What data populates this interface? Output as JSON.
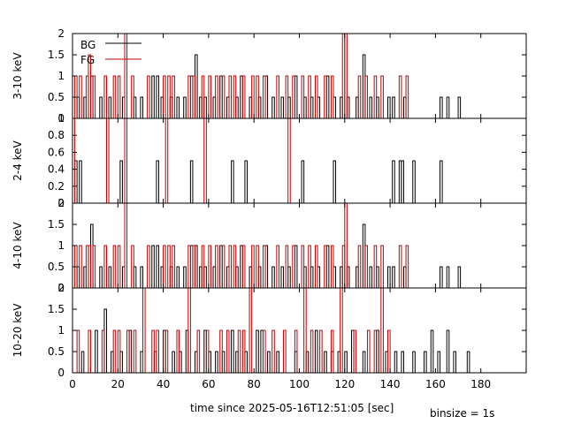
{
  "chart_data": {
    "type": "line",
    "step": true,
    "xlabel": "time since 2025-05-16T12:51:05 [sec]",
    "annotation": "binsize = 1s",
    "xlim": [
      0,
      200
    ],
    "xticks": [
      "0",
      "20",
      "40",
      "60",
      "80",
      "100",
      "120",
      "140",
      "160",
      "180"
    ],
    "legend": {
      "placement": "top-left",
      "entries": [
        "BG",
        "FG"
      ]
    },
    "colors": {
      "BG": "#000000",
      "FG": "#c00000"
    },
    "panels": [
      {
        "ylabel": "3-10 keV",
        "ylim": [
          0,
          2
        ],
        "yticks": [
          "0",
          "0.5",
          "1",
          "1.5",
          "2"
        ],
        "series": [
          {
            "name": "BG",
            "x": [
              2,
              5,
              8,
              12,
              16,
              22,
              27,
              30,
              35,
              37,
              39,
              43,
              46,
              49,
              52,
              54,
              56,
              58,
              62,
              65,
              68,
              72,
              74,
              78,
              82,
              85,
              88,
              92,
              95,
              98,
              102,
              105,
              108,
              112,
              115,
              118,
              121,
              125,
              128,
              131,
              134,
              139,
              141,
              146,
              162,
              165,
              170
            ],
            "y": [
              0.5,
              0.5,
              1,
              0.5,
              0.5,
              0.5,
              0.5,
              0.5,
              1,
              1,
              0.5,
              0.5,
              0.5,
              0.5,
              1,
              1.5,
              0.5,
              0.5,
              0.5,
              1,
              0.5,
              0.5,
              1,
              0.5,
              0.5,
              1,
              0.5,
              0.5,
              0.5,
              1,
              0.5,
              0.5,
              0.5,
              1,
              0.5,
              0.5,
              0.5,
              0.5,
              1.5,
              0.5,
              0.5,
              0.5,
              0.5,
              0.5,
              0.5,
              0.5,
              0.5
            ]
          },
          {
            "name": "FG",
            "x": [
              1,
              3,
              6,
              7,
              9,
              14,
              18,
              20,
              23,
              26,
              33,
              40,
              42,
              44,
              51,
              53,
              57,
              60,
              63,
              66,
              69,
              71,
              75,
              79,
              81,
              84,
              90,
              94,
              97,
              101,
              104,
              107,
              111,
              114,
              119,
              120,
              126,
              129,
              133,
              136,
              144,
              147
            ],
            "y": [
              1,
              1,
              1,
              1.5,
              1,
              1,
              1,
              1,
              2,
              1,
              1,
              1,
              1,
              1,
              1,
              1,
              1,
              1,
              1,
              1,
              1,
              1,
              1,
              1,
              1,
              1,
              1,
              1,
              1,
              1,
              1,
              1,
              1,
              1,
              2,
              2,
              1,
              1,
              1,
              1,
              1,
              1
            ]
          }
        ]
      },
      {
        "ylabel": "2-4 keV",
        "ylim": [
          0,
          1
        ],
        "yticks": [
          "0",
          "0.2",
          "0.4",
          "0.6",
          "0.8",
          "1"
        ],
        "series": [
          {
            "name": "BG",
            "x": [
              1,
              3,
              21,
              37,
              52,
              70,
              76,
              101,
              115,
              141,
              144,
              145,
              150,
              162
            ],
            "y": [
              0.5,
              0.5,
              0.5,
              0.5,
              0.5,
              0.5,
              0.5,
              0.5,
              0.5,
              0.5,
              0.5,
              0.5,
              0.5,
              0.5
            ]
          },
          {
            "name": "FG",
            "x": [
              0,
              15,
              23,
              41,
              58,
              95
            ],
            "y": [
              1,
              1,
              1,
              1,
              1,
              1
            ]
          }
        ]
      },
      {
        "ylabel": "4-10 keV",
        "ylim": [
          0,
          2
        ],
        "yticks": [
          "0",
          "0.5",
          "1",
          "1.5",
          "2"
        ],
        "series": [
          {
            "name": "BG",
            "x": [
              2,
              5,
              8,
              12,
              16,
              22,
              27,
              30,
              35,
              37,
              39,
              43,
              46,
              49,
              52,
              54,
              56,
              58,
              62,
              65,
              68,
              72,
              74,
              78,
              82,
              85,
              88,
              92,
              95,
              98,
              102,
              105,
              108,
              112,
              115,
              118,
              121,
              125,
              128,
              131,
              134,
              139,
              141,
              146,
              162,
              165,
              170
            ],
            "y": [
              0.5,
              0.5,
              1.5,
              0.5,
              0.5,
              0.5,
              0.5,
              0.5,
              1,
              1,
              0.5,
              0.5,
              0.5,
              0.5,
              1,
              1,
              0.5,
              0.5,
              0.5,
              1,
              0.5,
              0.5,
              1,
              0.5,
              0.5,
              1,
              0.5,
              0.5,
              0.5,
              1,
              0.5,
              0.5,
              0.5,
              1,
              0.5,
              0.5,
              0.5,
              0.5,
              1.5,
              0.5,
              0.5,
              0.5,
              0.5,
              0.5,
              0.5,
              0.5,
              0.5
            ]
          },
          {
            "name": "FG",
            "x": [
              1,
              3,
              6,
              7,
              9,
              14,
              18,
              20,
              23,
              26,
              33,
              40,
              42,
              44,
              51,
              53,
              57,
              60,
              63,
              66,
              69,
              71,
              75,
              79,
              81,
              84,
              90,
              94,
              97,
              101,
              104,
              107,
              111,
              114,
              119,
              120,
              126,
              129,
              133,
              136,
              144,
              147
            ],
            "y": [
              1,
              1,
              1,
              1,
              1,
              1,
              1,
              1,
              2,
              1,
              1,
              1,
              1,
              1,
              1,
              1,
              1,
              1,
              1,
              1,
              1,
              1,
              1,
              1,
              1,
              1,
              1,
              1,
              1,
              1,
              1,
              1,
              1,
              1,
              1,
              2,
              1,
              1,
              1,
              1,
              1,
              1
            ]
          }
        ]
      },
      {
        "ylabel": "10-20 keV",
        "ylim": [
          0,
          2
        ],
        "yticks": [
          "0",
          "0.5",
          "1",
          "1.5",
          "2"
        ],
        "series": [
          {
            "name": "BG",
            "x": [
              4,
              10,
              14,
              17,
              21,
              25,
              30,
              36,
              40,
              44,
              47,
              50,
              54,
              58,
              60,
              63,
              66,
              70,
              72,
              76,
              81,
              83,
              86,
              90,
              98,
              103,
              107,
              111,
              114,
              117,
              120,
              123,
              128,
              134,
              138,
              142,
              145,
              150,
              155,
              158,
              161,
              165,
              168,
              174
            ],
            "y": [
              0.5,
              1,
              1.5,
              0.5,
              0.5,
              1,
              0.5,
              0.5,
              1,
              0.5,
              0.5,
              1,
              0.5,
              1,
              0.5,
              0.5,
              0.5,
              1,
              0.5,
              0.5,
              1,
              1,
              0.5,
              0.5,
              0.5,
              0.5,
              1,
              0.5,
              0.5,
              0.5,
              0.5,
              1,
              0.5,
              1,
              0.5,
              0.5,
              0.5,
              0.5,
              0.5,
              1,
              0.5,
              1,
              0.5,
              0.5
            ]
          },
          {
            "name": "FG",
            "x": [
              2,
              7,
              13,
              18,
              20,
              24,
              27,
              31,
              35,
              37,
              41,
              46,
              51,
              55,
              59,
              65,
              68,
              73,
              75,
              78,
              84,
              88,
              93,
              98,
              102,
              105,
              109,
              114,
              118,
              124,
              130,
              133,
              136,
              139
            ],
            "y": [
              1,
              1,
              1,
              1,
              1,
              1,
              1,
              2,
              1,
              1,
              1,
              1,
              2,
              1,
              1,
              1,
              1,
              1,
              1,
              2,
              1,
              1,
              1,
              1,
              2,
              1,
              1,
              1,
              2,
              1,
              1,
              1,
              2,
              1
            ]
          }
        ]
      }
    ]
  }
}
